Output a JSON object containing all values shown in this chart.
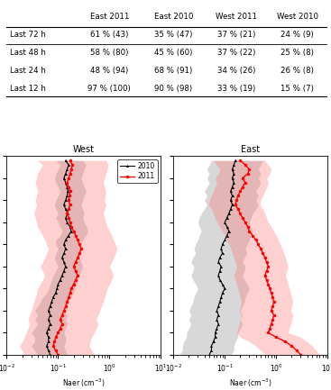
{
  "table": {
    "headers": [
      "",
      "East 2011",
      "East 2010",
      "West 2011",
      "West 2010"
    ],
    "rows": [
      [
        "Last 72 h",
        "61 % (43)",
        "35 % (47)",
        "37 % (21)",
        "24 % (9)"
      ],
      [
        "Last 48 h",
        "58 % (80)",
        "45 % (60)",
        "37 % (22)",
        "25 % (8)"
      ],
      [
        "Last 24 h",
        "48 % (94)",
        "68 % (91)",
        "34 % (26)",
        "26 % (8)"
      ],
      [
        "Last 12 h",
        "97 % (100)",
        "90 % (98)",
        "33 % (19)",
        "15 % (7)"
      ]
    ]
  },
  "west_2010_altitudes": [
    4400,
    4300,
    4200,
    4100,
    4000,
    3900,
    3800,
    3700,
    3600,
    3500,
    3400,
    3300,
    3200,
    3100,
    3000,
    2900,
    2800,
    2700,
    2600,
    2500,
    2400,
    2300,
    2200,
    2100,
    2000,
    1900,
    1800,
    1700,
    1600,
    1500,
    1400,
    1300,
    1200,
    1100,
    1000,
    900,
    800,
    700,
    600,
    500,
    400,
    300,
    200,
    100,
    0
  ],
  "west_2010_median": [
    0.14,
    0.16,
    0.15,
    0.14,
    0.13,
    0.14,
    0.15,
    0.155,
    0.15,
    0.14,
    0.13,
    0.14,
    0.155,
    0.14,
    0.15,
    0.17,
    0.18,
    0.16,
    0.14,
    0.13,
    0.14,
    0.13,
    0.12,
    0.13,
    0.14,
    0.13,
    0.12,
    0.11,
    0.1,
    0.095,
    0.09,
    0.08,
    0.075,
    0.07,
    0.065,
    0.07,
    0.065,
    0.07,
    0.065,
    0.06,
    0.065,
    0.065,
    0.06,
    0.065,
    0.07
  ],
  "west_2010_q25": [
    0.09,
    0.11,
    0.1,
    0.09,
    0.085,
    0.09,
    0.1,
    0.11,
    0.1,
    0.09,
    0.085,
    0.09,
    0.1,
    0.09,
    0.1,
    0.11,
    0.12,
    0.11,
    0.09,
    0.09,
    0.1,
    0.09,
    0.085,
    0.09,
    0.1,
    0.09,
    0.08,
    0.075,
    0.07,
    0.065,
    0.06,
    0.05,
    0.045,
    0.04,
    0.035,
    0.04,
    0.035,
    0.04,
    0.035,
    0.03,
    0.035,
    0.035,
    0.03,
    0.035,
    0.04
  ],
  "west_2010_q75": [
    0.3,
    0.35,
    0.32,
    0.3,
    0.28,
    0.3,
    0.32,
    0.35,
    0.32,
    0.3,
    0.28,
    0.3,
    0.32,
    0.3,
    0.32,
    0.36,
    0.38,
    0.35,
    0.3,
    0.28,
    0.3,
    0.28,
    0.26,
    0.28,
    0.3,
    0.28,
    0.26,
    0.24,
    0.22,
    0.21,
    0.2,
    0.18,
    0.16,
    0.15,
    0.14,
    0.15,
    0.14,
    0.15,
    0.14,
    0.13,
    0.14,
    0.14,
    0.13,
    0.14,
    0.15
  ],
  "west_2011_altitudes": [
    4400,
    4300,
    4200,
    4100,
    4000,
    3900,
    3800,
    3700,
    3600,
    3500,
    3400,
    3300,
    3200,
    3100,
    3000,
    2900,
    2800,
    2700,
    2600,
    2500,
    2400,
    2300,
    2200,
    2100,
    2000,
    1900,
    1800,
    1700,
    1600,
    1500,
    1400,
    1300,
    1200,
    1100,
    1000,
    900,
    800,
    700,
    600,
    500,
    400,
    300,
    200,
    100,
    0
  ],
  "west_2011_median": [
    0.17,
    0.19,
    0.18,
    0.17,
    0.16,
    0.15,
    0.16,
    0.17,
    0.165,
    0.16,
    0.17,
    0.16,
    0.15,
    0.16,
    0.17,
    0.18,
    0.2,
    0.22,
    0.24,
    0.26,
    0.28,
    0.26,
    0.24,
    0.22,
    0.2,
    0.22,
    0.24,
    0.22,
    0.2,
    0.18,
    0.17,
    0.16,
    0.15,
    0.14,
    0.13,
    0.12,
    0.11,
    0.12,
    0.11,
    0.1,
    0.09,
    0.085,
    0.08,
    0.09,
    0.1
  ],
  "west_2011_q25": [
    0.04,
    0.05,
    0.045,
    0.04,
    0.038,
    0.036,
    0.038,
    0.04,
    0.038,
    0.036,
    0.038,
    0.036,
    0.034,
    0.036,
    0.038,
    0.04,
    0.045,
    0.05,
    0.055,
    0.06,
    0.065,
    0.06,
    0.055,
    0.05,
    0.045,
    0.05,
    0.055,
    0.05,
    0.045,
    0.04,
    0.038,
    0.036,
    0.034,
    0.032,
    0.03,
    0.028,
    0.026,
    0.028,
    0.026,
    0.024,
    0.022,
    0.02,
    0.018,
    0.02,
    0.022
  ],
  "west_2011_q75": [
    0.85,
    0.95,
    0.9,
    0.85,
    0.8,
    0.75,
    0.8,
    0.85,
    0.82,
    0.8,
    0.85,
    0.8,
    0.75,
    0.8,
    0.85,
    0.9,
    1.0,
    1.1,
    1.2,
    1.3,
    1.4,
    1.3,
    1.2,
    1.1,
    1.0,
    1.1,
    1.2,
    1.1,
    1.0,
    0.9,
    0.85,
    0.8,
    0.75,
    0.7,
    0.65,
    0.6,
    0.55,
    0.6,
    0.55,
    0.5,
    0.45,
    0.42,
    0.4,
    0.45,
    0.5
  ],
  "east_2010_altitudes": [
    4400,
    4300,
    4200,
    4100,
    4000,
    3900,
    3800,
    3700,
    3600,
    3500,
    3400,
    3300,
    3200,
    3100,
    3000,
    2900,
    2800,
    2700,
    2600,
    2500,
    2400,
    2300,
    2200,
    2100,
    2000,
    1900,
    1800,
    1700,
    1600,
    1500,
    1400,
    1300,
    1200,
    1100,
    1000,
    900,
    800,
    700,
    600,
    500,
    400,
    300,
    200,
    100,
    0
  ],
  "east_2010_median": [
    0.16,
    0.15,
    0.14,
    0.15,
    0.14,
    0.15,
    0.14,
    0.13,
    0.14,
    0.13,
    0.14,
    0.13,
    0.12,
    0.11,
    0.1,
    0.11,
    0.12,
    0.11,
    0.1,
    0.09,
    0.085,
    0.09,
    0.08,
    0.075,
    0.085,
    0.08,
    0.075,
    0.08,
    0.09,
    0.1,
    0.09,
    0.085,
    0.08,
    0.075,
    0.07,
    0.075,
    0.07,
    0.075,
    0.07,
    0.065,
    0.065,
    0.06,
    0.055,
    0.055,
    0.05
  ],
  "east_2010_q25": [
    0.055,
    0.05,
    0.045,
    0.05,
    0.045,
    0.05,
    0.045,
    0.04,
    0.045,
    0.04,
    0.045,
    0.04,
    0.035,
    0.032,
    0.03,
    0.032,
    0.035,
    0.032,
    0.03,
    0.027,
    0.025,
    0.027,
    0.024,
    0.022,
    0.025,
    0.024,
    0.022,
    0.024,
    0.027,
    0.03,
    0.027,
    0.025,
    0.024,
    0.022,
    0.02,
    0.022,
    0.02,
    0.022,
    0.02,
    0.018,
    0.018,
    0.016,
    0.015,
    0.015,
    0.013
  ],
  "east_2010_q75": [
    0.55,
    0.5,
    0.45,
    0.5,
    0.45,
    0.5,
    0.45,
    0.4,
    0.45,
    0.4,
    0.45,
    0.4,
    0.35,
    0.32,
    0.3,
    0.32,
    0.35,
    0.32,
    0.3,
    0.27,
    0.25,
    0.27,
    0.24,
    0.22,
    0.25,
    0.24,
    0.22,
    0.24,
    0.27,
    0.3,
    0.27,
    0.25,
    0.24,
    0.22,
    0.2,
    0.22,
    0.2,
    0.22,
    0.2,
    0.18,
    0.18,
    0.16,
    0.15,
    0.15,
    0.13
  ],
  "east_2011_altitudes": [
    4400,
    4300,
    4200,
    4100,
    4000,
    3900,
    3800,
    3700,
    3600,
    3500,
    3400,
    3300,
    3200,
    3100,
    3000,
    2900,
    2800,
    2700,
    2600,
    2500,
    2400,
    2300,
    2200,
    2100,
    2000,
    1900,
    1800,
    1700,
    1600,
    1500,
    1400,
    1300,
    1200,
    1100,
    1000,
    900,
    800,
    700,
    600,
    500,
    400,
    300,
    200,
    100,
    0
  ],
  "east_2011_median": [
    0.2,
    0.25,
    0.3,
    0.28,
    0.22,
    0.25,
    0.22,
    0.2,
    0.18,
    0.17,
    0.16,
    0.18,
    0.2,
    0.22,
    0.25,
    0.28,
    0.3,
    0.35,
    0.4,
    0.45,
    0.5,
    0.55,
    0.6,
    0.65,
    0.7,
    0.65,
    0.6,
    0.65,
    0.7,
    0.75,
    0.8,
    0.85,
    0.9,
    0.85,
    0.8,
    0.9,
    0.85,
    0.8,
    0.75,
    0.7,
    1.0,
    1.5,
    2.0,
    2.5,
    3.0
  ],
  "east_2011_q25": [
    0.06,
    0.07,
    0.08,
    0.075,
    0.065,
    0.07,
    0.065,
    0.06,
    0.055,
    0.05,
    0.048,
    0.055,
    0.06,
    0.065,
    0.07,
    0.08,
    0.09,
    0.1,
    0.11,
    0.12,
    0.13,
    0.14,
    0.15,
    0.16,
    0.17,
    0.16,
    0.15,
    0.16,
    0.17,
    0.18,
    0.19,
    0.2,
    0.21,
    0.2,
    0.19,
    0.21,
    0.2,
    0.19,
    0.18,
    0.17,
    0.2,
    0.3,
    0.4,
    0.5,
    0.6
  ],
  "east_2011_q75": [
    0.6,
    0.7,
    0.8,
    0.75,
    0.65,
    0.7,
    0.65,
    0.6,
    0.55,
    0.5,
    0.48,
    0.55,
    0.6,
    0.65,
    0.7,
    0.8,
    0.9,
    1.0,
    1.1,
    1.2,
    1.3,
    1.4,
    1.5,
    1.6,
    1.7,
    1.6,
    1.5,
    1.6,
    1.7,
    1.8,
    1.9,
    2.0,
    2.1,
    2.0,
    1.9,
    2.1,
    2.0,
    1.9,
    1.8,
    1.7,
    3.0,
    4.0,
    5.0,
    6.0,
    7.0
  ]
}
